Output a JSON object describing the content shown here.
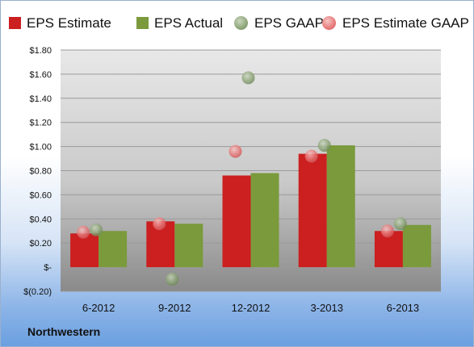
{
  "chart_data": {
    "type": "bar",
    "categories": [
      "6-2012",
      "9-2012",
      "12-2012",
      "3-2013",
      "6-2013"
    ],
    "series": [
      {
        "name": "EPS Estimate",
        "kind": "bar",
        "color": "#cc1f1f",
        "values": [
          0.28,
          0.38,
          0.76,
          0.94,
          0.3
        ]
      },
      {
        "name": "EPS Actual",
        "kind": "bar",
        "color": "#7a9a3c",
        "values": [
          0.3,
          0.36,
          0.78,
          1.01,
          0.35
        ]
      },
      {
        "name": "EPS GAAP",
        "kind": "marker",
        "color": "#8fa67a",
        "values": [
          0.31,
          -0.1,
          1.57,
          1.01,
          0.36
        ]
      },
      {
        "name": "EPS Estimate GAAP",
        "kind": "marker",
        "color": "#e87a7a",
        "values": [
          0.29,
          0.36,
          0.96,
          0.92,
          0.3
        ]
      }
    ],
    "yticks": [
      -0.2,
      0,
      0.2,
      0.4,
      0.6,
      0.8,
      1.0,
      1.2,
      1.4,
      1.6,
      1.8
    ],
    "ytick_labels": [
      "$(0.20)",
      "$-",
      "$0.20",
      "$0.40",
      "$0.60",
      "$0.80",
      "$1.00",
      "$1.20",
      "$1.40",
      "$1.60",
      "$1.80"
    ],
    "ylim": [
      -0.2,
      1.8
    ],
    "grid": true,
    "legend_position": "top"
  },
  "legend": {
    "eps_estimate": "EPS Estimate",
    "eps_actual": "EPS Actual",
    "eps_gaap": "EPS GAAP",
    "eps_estimate_gaap": "EPS Estimate GAAP"
  },
  "footer": {
    "company": "Northwestern"
  },
  "colors": {
    "estimate": "#cc1f1f",
    "actual": "#7a9a3c",
    "gaap_marker": "#8fa67a",
    "estimate_gaap_marker": "#e87a7a",
    "plot_top": "#e6e6e6",
    "plot_bottom": "#8c8c8c"
  }
}
